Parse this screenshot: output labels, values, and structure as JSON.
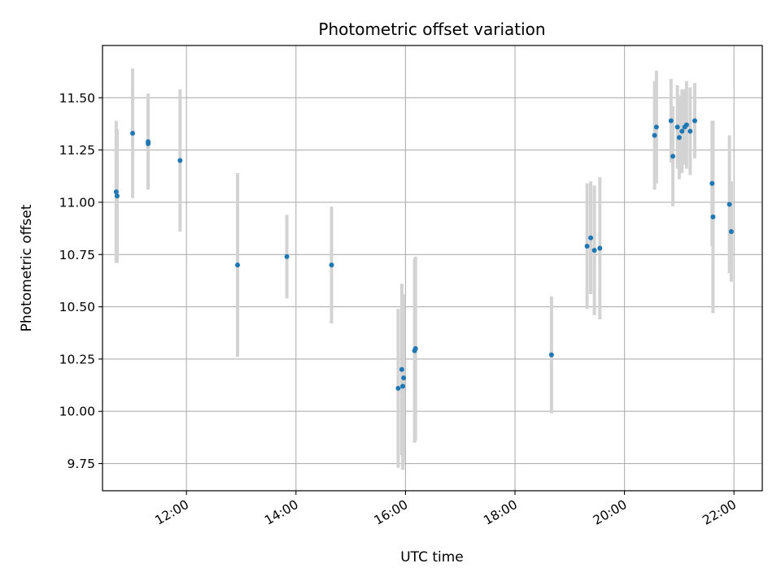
{
  "chart_data": {
    "type": "scatter",
    "title": "Photometric offset variation",
    "xlabel": "UTC time",
    "ylabel": "Photometric offset",
    "x_unit": "hours (UTC)",
    "xlim": [
      "10:28",
      "22:31"
    ],
    "ylim": [
      9.62,
      11.75
    ],
    "grid": true,
    "x_tick_labels": [
      "12:00",
      "14:00",
      "16:00",
      "18:00",
      "20:00",
      "22:00"
    ],
    "x_tick_values": [
      "12:00",
      "14:00",
      "16:00",
      "18:00",
      "20:00",
      "22:00"
    ],
    "y_tick_labels": [
      "9.75",
      "10.00",
      "10.25",
      "10.50",
      "10.75",
      "11.00",
      "11.25",
      "11.50"
    ],
    "y_tick_values": [
      9.75,
      10.0,
      10.25,
      10.5,
      10.75,
      11.0,
      11.25,
      11.5
    ],
    "colors": {
      "marker": "#1f77b4",
      "errorbar": "#d3d3d3",
      "grid": "#b0b0b0"
    },
    "points": [
      {
        "x": "10:43",
        "y": 11.05,
        "yerr": 0.34
      },
      {
        "x": "10:44",
        "y": 11.03,
        "yerr": 0.32
      },
      {
        "x": "11:01",
        "y": 11.33,
        "yerr": 0.31
      },
      {
        "x": "11:18",
        "y": 11.29,
        "yerr": 0.23
      },
      {
        "x": "11:18",
        "y": 11.28,
        "yerr": 0.22
      },
      {
        "x": "11:53",
        "y": 11.2,
        "yerr": 0.34
      },
      {
        "x": "12:56",
        "y": 10.7,
        "yerr": 0.44
      },
      {
        "x": "13:50",
        "y": 10.74,
        "yerr": 0.2
      },
      {
        "x": "14:39",
        "y": 10.7,
        "yerr": 0.28
      },
      {
        "x": "15:52",
        "y": 10.11,
        "yerr": 0.38
      },
      {
        "x": "15:56",
        "y": 10.2,
        "yerr": 0.41
      },
      {
        "x": "15:57",
        "y": 10.12,
        "yerr": 0.4
      },
      {
        "x": "15:58",
        "y": 10.16,
        "yerr": 0.4
      },
      {
        "x": "16:10",
        "y": 10.29,
        "yerr": 0.44
      },
      {
        "x": "16:11",
        "y": 10.3,
        "yerr": 0.44
      },
      {
        "x": "18:40",
        "y": 10.27,
        "yerr": 0.28
      },
      {
        "x": "19:19",
        "y": 10.79,
        "yerr": 0.3
      },
      {
        "x": "19:23",
        "y": 10.83,
        "yerr": 0.27
      },
      {
        "x": "19:27",
        "y": 10.77,
        "yerr": 0.31
      },
      {
        "x": "19:33",
        "y": 10.78,
        "yerr": 0.34
      },
      {
        "x": "20:33",
        "y": 11.32,
        "yerr": 0.26
      },
      {
        "x": "20:35",
        "y": 11.36,
        "yerr": 0.27
      },
      {
        "x": "20:51",
        "y": 11.39,
        "yerr": 0.2
      },
      {
        "x": "20:53",
        "y": 11.22,
        "yerr": 0.24
      },
      {
        "x": "20:58",
        "y": 11.36,
        "yerr": 0.2
      },
      {
        "x": "21:00",
        "y": 11.31,
        "yerr": 0.2
      },
      {
        "x": "21:03",
        "y": 11.34,
        "yerr": 0.2
      },
      {
        "x": "21:06",
        "y": 11.36,
        "yerr": 0.18
      },
      {
        "x": "21:08",
        "y": 11.37,
        "yerr": 0.21
      },
      {
        "x": "21:12",
        "y": 11.34,
        "yerr": 0.21
      },
      {
        "x": "21:17",
        "y": 11.39,
        "yerr": 0.18
      },
      {
        "x": "21:36",
        "y": 11.09,
        "yerr": 0.3
      },
      {
        "x": "21:37",
        "y": 10.93,
        "yerr": 0.46
      },
      {
        "x": "21:55",
        "y": 10.99,
        "yerr": 0.33
      },
      {
        "x": "21:57",
        "y": 10.86,
        "yerr": 0.24
      }
    ]
  }
}
